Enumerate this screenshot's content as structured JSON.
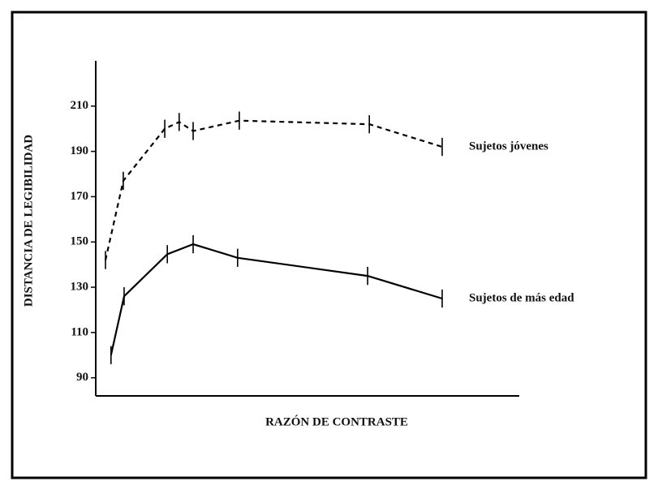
{
  "chart_data": {
    "type": "line",
    "x_label": "RAZÓN DE CONTRASTE",
    "y_label": "DISTANCIA DE LEGIBILIDAD",
    "xlim": [
      0,
      100
    ],
    "ylim": [
      82,
      230
    ],
    "yticks": [
      90,
      110,
      130,
      150,
      170,
      190,
      210
    ],
    "grid": false,
    "series": [
      {
        "name": "Sujetos jóvenes",
        "color": "#000000",
        "line_style": "dashed",
        "x": [
          2.3,
          6.5,
          16.3,
          19.7,
          23,
          33.9,
          64.6,
          81.8
        ],
        "values": [
          142,
          177,
          200,
          203,
          199,
          203.6,
          202,
          192
        ],
        "errors": [
          4,
          4,
          4,
          4,
          4,
          4,
          4,
          4
        ]
      },
      {
        "name": "Sujetos de más edad",
        "color": "#000000",
        "line_style": "solid",
        "x": [
          3.6,
          6.7,
          16.9,
          23,
          33.5,
          64.2,
          81.8
        ],
        "values": [
          100,
          126,
          144.6,
          149,
          143,
          135,
          125
        ],
        "errors": [
          4,
          4,
          4,
          4,
          4,
          4,
          4
        ]
      }
    ]
  }
}
